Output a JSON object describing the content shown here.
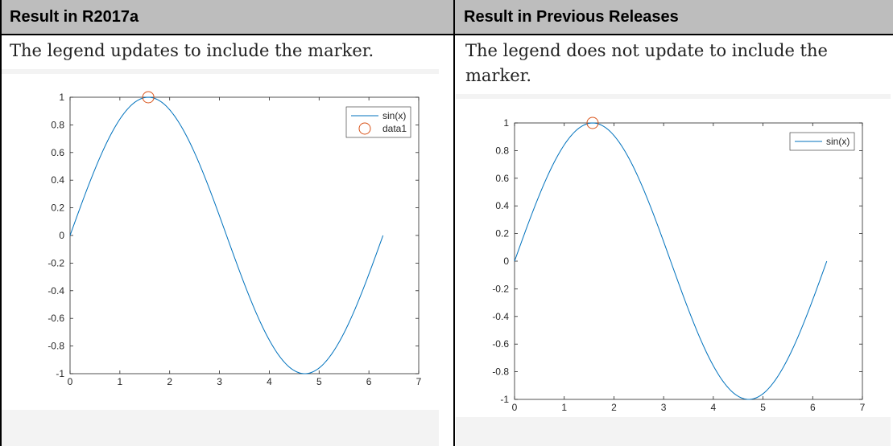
{
  "table": {
    "headers": [
      "Result in R2017a",
      "Result in Previous Releases"
    ],
    "descriptions": [
      "The legend updates to include the marker.",
      "The legend does not update to include the marker."
    ]
  },
  "chart_data": [
    {
      "type": "line",
      "function": "sin(x)",
      "x_range": [
        0,
        6.2832
      ],
      "xlim": [
        0,
        7
      ],
      "ylim": [
        -1,
        1
      ],
      "xticks": [
        0,
        1,
        2,
        3,
        4,
        5,
        6,
        7
      ],
      "yticks": [
        -1,
        -0.8,
        -0.6,
        -0.4,
        -0.2,
        0,
        0.2,
        0.4,
        0.6,
        0.8,
        1
      ],
      "series": [
        {
          "name": "sin(x)",
          "kind": "line",
          "color": "#0072bd"
        },
        {
          "name": "data1",
          "kind": "marker",
          "marker": "o",
          "x": [
            1.5708
          ],
          "y": [
            1
          ],
          "color": "#d95319"
        }
      ],
      "legend": {
        "entries": [
          "sin(x)",
          "data1"
        ],
        "placement": "top-right"
      },
      "grid": false
    },
    {
      "type": "line",
      "function": "sin(x)",
      "x_range": [
        0,
        6.2832
      ],
      "xlim": [
        0,
        7
      ],
      "ylim": [
        -1,
        1
      ],
      "xticks": [
        0,
        1,
        2,
        3,
        4,
        5,
        6,
        7
      ],
      "yticks": [
        -1,
        -0.8,
        -0.6,
        -0.4,
        -0.2,
        0,
        0.2,
        0.4,
        0.6,
        0.8,
        1
      ],
      "series": [
        {
          "name": "sin(x)",
          "kind": "line",
          "color": "#0072bd"
        },
        {
          "name": "",
          "kind": "marker",
          "marker": "o",
          "x": [
            1.5708
          ],
          "y": [
            1
          ],
          "color": "#d95319"
        }
      ],
      "legend": {
        "entries": [
          "sin(x)"
        ],
        "placement": "top-right"
      },
      "grid": false
    }
  ]
}
